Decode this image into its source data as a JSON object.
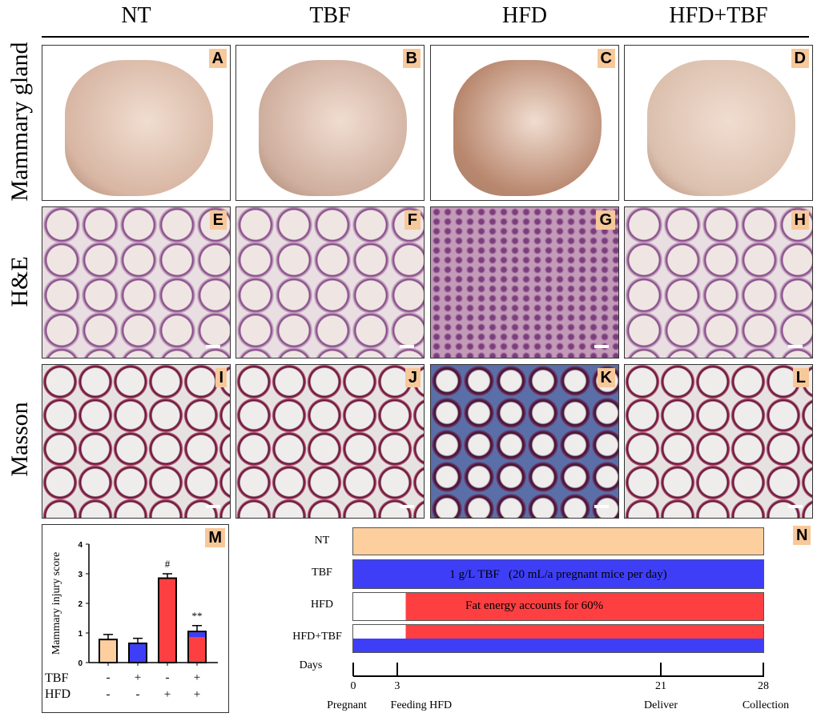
{
  "columns": [
    "NT",
    "TBF",
    "HFD",
    "HFD+TBF"
  ],
  "rows": [
    "Mammary gland",
    "H&E",
    "Masson"
  ],
  "panel_letters": [
    "A",
    "B",
    "C",
    "D",
    "E",
    "F",
    "G",
    "H",
    "I",
    "J",
    "K",
    "L"
  ],
  "panel_m": {
    "letter": "M"
  },
  "panel_n": {
    "letter": "N",
    "groups": [
      "NT",
      "TBF",
      "HFD",
      "HFD+TBF"
    ],
    "tbf_text": "1 g/L TBF   (20 mL/a pregnant mice per day)",
    "hfd_text": "Fat energy accounts for 60%",
    "days_label": "Days",
    "ticks": [
      {
        "day": "0",
        "event": "Pregnant"
      },
      {
        "day": "3",
        "event": "Feeding HFD"
      },
      {
        "day": "21",
        "event": "Deliver"
      },
      {
        "day": "28",
        "event": "Collection"
      }
    ],
    "colors": {
      "nt": "#fdcf9e",
      "tbf": "#3e3ef7",
      "hfd": "#fd3f42"
    }
  },
  "chart_data": {
    "type": "bar",
    "ylabel": "Mammary injury score",
    "ylim": [
      0,
      4
    ],
    "yticks": [
      "0",
      "1",
      "2",
      "3",
      "4"
    ],
    "row_labels": [
      "TBF",
      "HFD"
    ],
    "tbf": [
      "-",
      "+",
      "-",
      "+"
    ],
    "hfd": [
      "-",
      "-",
      "+",
      "+"
    ],
    "values": [
      0.78,
      0.65,
      2.85,
      1.05
    ],
    "errors": [
      0.17,
      0.17,
      0.15,
      0.2
    ],
    "annotations": [
      "",
      "",
      "#",
      "**"
    ],
    "colors": [
      "#fdcf9e",
      "#3e3ef7",
      "#fd3f42",
      "#fd3f42"
    ]
  }
}
